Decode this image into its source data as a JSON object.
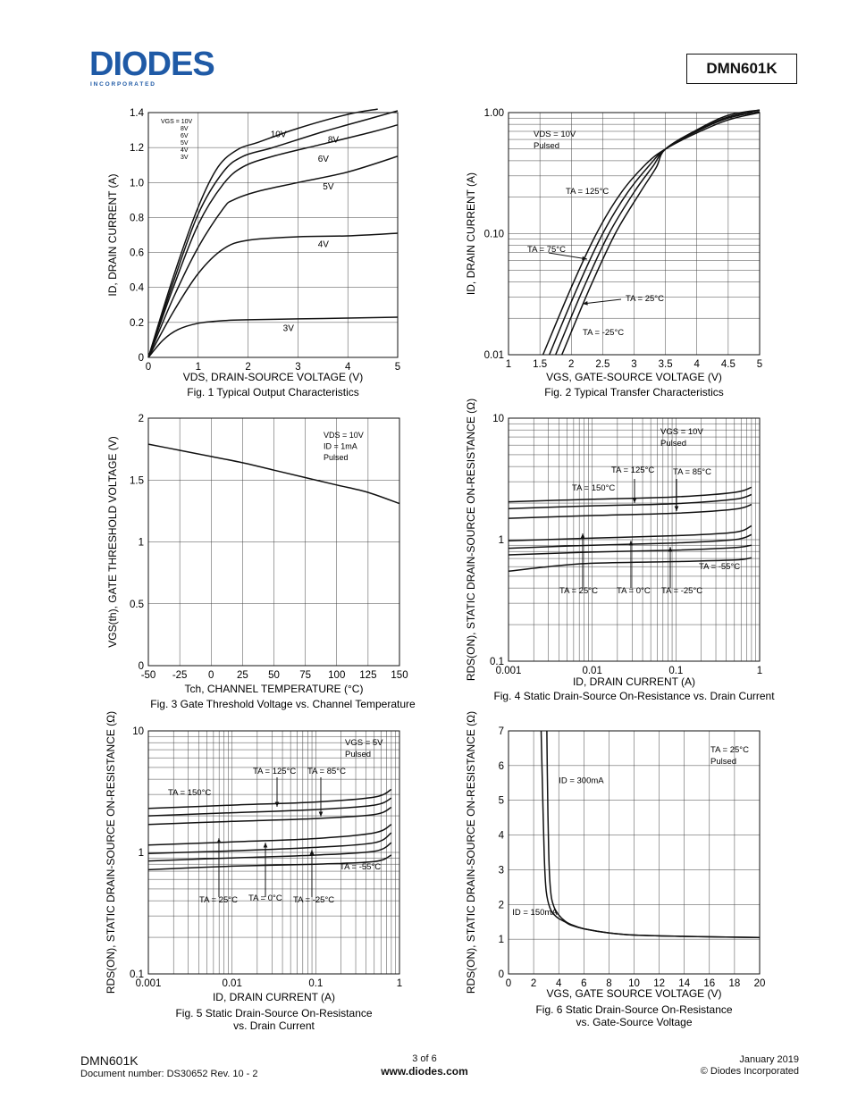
{
  "header": {
    "logo_text": "DIODES",
    "logo_subtext": "I N C O R P O R A T E D",
    "part_number": "DMN601K"
  },
  "footer": {
    "part_number": "DMN601K",
    "document_number": "Document number: DS30652  Rev. 10 - 2",
    "page": "3 of 6",
    "website": "www.diodes.com",
    "date": "January 2019",
    "copyright": "© Diodes Incorporated"
  },
  "chart_data": [
    {
      "id": "fig1",
      "type": "line",
      "title": "Fig. 1  Typical Output Characteristics",
      "xlabel": "VDS, DRAIN-SOURCE VOLTAGE (V)",
      "ylabel": "ID, DRAIN CURRENT (A)",
      "xlim": [
        0,
        5
      ],
      "ylim": [
        0,
        1.4
      ],
      "x_ticks": [
        "0",
        "1",
        "2",
        "3",
        "4",
        "5"
      ],
      "y_ticks": [
        "0",
        "0.2",
        "0.4",
        "0.6",
        "0.8",
        "1.0",
        "1.2",
        "1.4"
      ],
      "legend_lines": [
        "VGS = 10V",
        "8V",
        "6V",
        "5V",
        "4V",
        "3V"
      ],
      "series": [
        {
          "name": "10V",
          "x": [
            0,
            0.5,
            1,
            1.4,
            1.8,
            2.2,
            3,
            4,
            4.6
          ],
          "y": [
            0,
            0.46,
            0.86,
            1.09,
            1.19,
            1.23,
            1.31,
            1.39,
            1.42
          ]
        },
        {
          "name": "8V",
          "x": [
            0,
            0.5,
            1,
            1.5,
            1.9,
            2.5,
            3.5,
            4.5,
            5
          ],
          "y": [
            0,
            0.43,
            0.82,
            1.06,
            1.15,
            1.2,
            1.29,
            1.37,
            1.41
          ]
        },
        {
          "name": "6V",
          "x": [
            0,
            0.5,
            1,
            1.5,
            1.9,
            2.5,
            3.5,
            4.5,
            5
          ],
          "y": [
            0,
            0.4,
            0.76,
            0.99,
            1.09,
            1.15,
            1.22,
            1.29,
            1.33
          ]
        },
        {
          "name": "5V",
          "x": [
            0,
            0.5,
            1,
            1.5,
            1.7,
            2.2,
            3,
            4,
            5
          ],
          "y": [
            0,
            0.34,
            0.63,
            0.85,
            0.9,
            0.95,
            1.0,
            1.06,
            1.15
          ]
        },
        {
          "name": "4V",
          "x": [
            0,
            0.5,
            1,
            1.5,
            2,
            3,
            4,
            5
          ],
          "y": [
            0,
            0.26,
            0.48,
            0.62,
            0.67,
            0.69,
            0.695,
            0.71
          ]
        },
        {
          "name": "3V",
          "x": [
            0,
            0.3,
            0.6,
            1,
            1.5,
            2,
            3,
            4,
            5
          ],
          "y": [
            0,
            0.1,
            0.16,
            0.195,
            0.21,
            0.215,
            0.22,
            0.225,
            0.23
          ]
        }
      ],
      "annotations": [
        {
          "text": "10V",
          "x": 2.45,
          "y": 1.26
        },
        {
          "text": "8V",
          "x": 3.6,
          "y": 1.23
        },
        {
          "text": "6V",
          "x": 3.4,
          "y": 1.12
        },
        {
          "text": "5V",
          "x": 3.5,
          "y": 0.96
        },
        {
          "text": "4V",
          "x": 3.4,
          "y": 0.63
        },
        {
          "text": "3V",
          "x": 2.7,
          "y": 0.15
        }
      ]
    },
    {
      "id": "fig2",
      "type": "line",
      "title": "Fig. 2  Typical Transfer Characteristics",
      "xlabel": "VGS, GATE-SOURCE VOLTAGE (V)",
      "ylabel": "ID, DRAIN CURRENT (A)",
      "xlim": [
        1,
        5
      ],
      "ylim": [
        0.01,
        1.0
      ],
      "yscale": "log",
      "x_ticks": [
        "1",
        "1.5",
        "2",
        "2.5",
        "3",
        "3.5",
        "4",
        "4.5",
        "5"
      ],
      "y_ticks": [
        "0.01",
        "0.10",
        "1.00"
      ],
      "legend_lines": [
        "VDS = 10V",
        "Pulsed"
      ],
      "series": [
        {
          "name": "TA = 125°C",
          "x": [
            1.55,
            2.0,
            2.4,
            2.8,
            3.2,
            3.5,
            4.0,
            4.5,
            5.0
          ],
          "y": [
            0.01,
            0.036,
            0.1,
            0.22,
            0.38,
            0.5,
            0.68,
            0.87,
            1.0
          ]
        },
        {
          "name": "TA = 75°C",
          "x": [
            1.65,
            2.1,
            2.5,
            2.9,
            3.25,
            3.5,
            4.0,
            4.5,
            5.0
          ],
          "y": [
            0.01,
            0.036,
            0.1,
            0.22,
            0.37,
            0.5,
            0.7,
            0.9,
            1.02
          ]
        },
        {
          "name": "TA = 25°C",
          "x": [
            1.75,
            2.2,
            2.6,
            3.0,
            3.3,
            3.5,
            4.0,
            4.5,
            5.0
          ],
          "y": [
            0.01,
            0.036,
            0.1,
            0.22,
            0.36,
            0.5,
            0.71,
            0.92,
            1.05
          ]
        },
        {
          "name": "TA = -25°C",
          "x": [
            1.85,
            2.3,
            2.7,
            3.1,
            3.35,
            3.5,
            4.0,
            4.5,
            5.0
          ],
          "y": [
            0.01,
            0.036,
            0.1,
            0.22,
            0.35,
            0.5,
            0.72,
            0.95,
            1.05
          ]
        }
      ]
    },
    {
      "id": "fig3",
      "type": "line",
      "title": "Fig. 3  Gate Threshold Voltage vs. Channel Temperature",
      "xlabel": "Tch, CHANNEL TEMPERATURE (°C)",
      "ylabel": "VGS(th), GATE THRESHOLD VOLTAGE (V)",
      "xlim": [
        -50,
        150
      ],
      "ylim": [
        0,
        2
      ],
      "x_ticks": [
        "-50",
        "-25",
        "0",
        "25",
        "50",
        "75",
        "100",
        "125",
        "150"
      ],
      "y_ticks": [
        "0",
        "0.5",
        "1",
        "1.5",
        "2"
      ],
      "legend_lines": [
        "VDS = 10V",
        "ID = 1mA",
        "Pulsed"
      ],
      "series": [
        {
          "name": "VGS(th)",
          "x": [
            -50,
            -25,
            0,
            25,
            50,
            75,
            100,
            125,
            150
          ],
          "y": [
            1.79,
            1.74,
            1.69,
            1.64,
            1.58,
            1.52,
            1.46,
            1.4,
            1.31
          ]
        }
      ]
    },
    {
      "id": "fig4",
      "type": "line",
      "title": "Fig. 4 Static Drain-Source On-Resistance vs. Drain Current",
      "xlabel": "ID, DRAIN CURRENT (A)",
      "ylabel": "RDS(ON), STATIC DRAIN-SOURCE ON-RESISTANCE (Ω)",
      "xlim": [
        0.001,
        1
      ],
      "ylim": [
        0.1,
        10
      ],
      "xscale": "log",
      "yscale": "log",
      "x_ticks": [
        "0.001",
        "0.01",
        "0.1",
        "1"
      ],
      "y_ticks": [
        "0.1",
        "1",
        "10"
      ],
      "legend_lines": [
        "VGS = 10V",
        "Pulsed"
      ],
      "series": [
        {
          "name": "TA = 150°C",
          "x": [
            0.001,
            0.01,
            0.1,
            0.5,
            0.8
          ],
          "y": [
            2.05,
            2.15,
            2.25,
            2.45,
            2.7
          ]
        },
        {
          "name": "TA = 125°C",
          "x": [
            0.001,
            0.01,
            0.1,
            0.5,
            0.8
          ],
          "y": [
            1.8,
            1.9,
            1.98,
            2.15,
            2.35
          ]
        },
        {
          "name": "TA = 85°C",
          "x": [
            0.001,
            0.01,
            0.1,
            0.5,
            0.8
          ],
          "y": [
            1.5,
            1.58,
            1.65,
            1.78,
            1.95
          ]
        },
        {
          "name": "TA = 25°C",
          "x": [
            0.001,
            0.01,
            0.1,
            0.5,
            0.8
          ],
          "y": [
            0.98,
            1.03,
            1.08,
            1.15,
            1.3
          ]
        },
        {
          "name": "TA = 0°C",
          "x": [
            0.001,
            0.01,
            0.1,
            0.5,
            0.8
          ],
          "y": [
            0.85,
            0.9,
            0.94,
            1.0,
            1.1
          ]
        },
        {
          "name": "TA = -25°C",
          "x": [
            0.001,
            0.01,
            0.1,
            0.5,
            0.8
          ],
          "y": [
            0.75,
            0.79,
            0.82,
            0.86,
            0.9
          ]
        },
        {
          "name": "TA = -55°C",
          "x": [
            0.001,
            0.003,
            0.01,
            0.1,
            0.5,
            0.8
          ],
          "y": [
            0.55,
            0.6,
            0.64,
            0.66,
            0.68,
            0.71
          ]
        }
      ]
    },
    {
      "id": "fig5",
      "type": "line",
      "title": "Fig. 5  Static Drain-Source On-Resistance",
      "title2": "vs. Drain Current",
      "xlabel": "ID, DRAIN CURRENT (A)",
      "ylabel": "RDS(ON), STATIC DRAIN-SOURCE ON-RESISTANCE (Ω)",
      "xlim": [
        0.001,
        1
      ],
      "ylim": [
        0.1,
        10
      ],
      "xscale": "log",
      "yscale": "log",
      "x_ticks": [
        "0.001",
        "0.01",
        "0.1",
        "1"
      ],
      "y_ticks": [
        "0.1",
        "1",
        "10"
      ],
      "legend_lines": [
        "VGS = 5V",
        "Pulsed"
      ],
      "series": [
        {
          "name": "TA = 150°C",
          "x": [
            0.001,
            0.01,
            0.1,
            0.5,
            0.8
          ],
          "y": [
            2.3,
            2.45,
            2.6,
            2.85,
            3.3
          ]
        },
        {
          "name": "TA = 125°C",
          "x": [
            0.001,
            0.01,
            0.1,
            0.5,
            0.8
          ],
          "y": [
            2.0,
            2.12,
            2.25,
            2.45,
            2.8
          ]
        },
        {
          "name": "TA = 85°C",
          "x": [
            0.001,
            0.01,
            0.1,
            0.5,
            0.8
          ],
          "y": [
            1.7,
            1.8,
            1.9,
            2.05,
            2.35
          ]
        },
        {
          "name": "TA = 25°C",
          "x": [
            0.001,
            0.01,
            0.1,
            0.5,
            0.8
          ],
          "y": [
            1.15,
            1.22,
            1.3,
            1.45,
            1.7
          ]
        },
        {
          "name": "TA = 0°C",
          "x": [
            0.001,
            0.01,
            0.1,
            0.5,
            0.8
          ],
          "y": [
            0.98,
            1.03,
            1.1,
            1.2,
            1.45
          ]
        },
        {
          "name": "TA = -25°C",
          "x": [
            0.001,
            0.01,
            0.1,
            0.5,
            0.8
          ],
          "y": [
            0.85,
            0.9,
            0.95,
            1.02,
            1.2
          ]
        },
        {
          "name": "TA = -55°C",
          "x": [
            0.001,
            0.01,
            0.1,
            0.5,
            0.8
          ],
          "y": [
            0.72,
            0.77,
            0.8,
            0.84,
            0.95
          ]
        }
      ]
    },
    {
      "id": "fig6",
      "type": "line",
      "title": "Fig. 6  Static Drain-Source On-Resistance",
      "title2": "vs. Gate-Source Voltage",
      "xlabel": "VGS, GATE SOURCE VOLTAGE (V)",
      "ylabel": "RDS(ON), STATIC DRAIN-SOURCE ON-RESISTANCE (Ω)",
      "xlim": [
        0,
        20
      ],
      "ylim": [
        0,
        7
      ],
      "x_ticks": [
        "0",
        "2",
        "4",
        "6",
        "8",
        "10",
        "12",
        "14",
        "16",
        "18",
        "20"
      ],
      "y_ticks": [
        "0",
        "1",
        "2",
        "3",
        "4",
        "5",
        "6",
        "7"
      ],
      "legend_lines": [
        "TA = 25°C",
        "Pulsed"
      ],
      "series": [
        {
          "name": "ID = 300mA",
          "x": [
            3.05,
            3.1,
            3.2,
            3.35,
            3.6,
            4,
            4.5,
            5,
            6,
            8,
            10,
            14,
            20
          ],
          "y": [
            7,
            5.5,
            3.5,
            2.4,
            1.95,
            1.7,
            1.52,
            1.42,
            1.3,
            1.18,
            1.12,
            1.08,
            1.05
          ]
        },
        {
          "name": "ID = 150mA",
          "x": [
            2.6,
            2.7,
            2.85,
            3.0,
            3.3,
            3.8,
            4.5,
            5,
            6,
            8,
            10,
            14,
            20
          ],
          "y": [
            7,
            5.5,
            3.4,
            2.4,
            1.9,
            1.65,
            1.5,
            1.4,
            1.3,
            1.18,
            1.12,
            1.08,
            1.05
          ]
        }
      ],
      "annotations": [
        {
          "text": "ID = 300mA",
          "x": 4.0,
          "y": 5.5
        },
        {
          "text": "ID = 150mA",
          "x": 0.3,
          "y": 1.7
        }
      ]
    }
  ]
}
